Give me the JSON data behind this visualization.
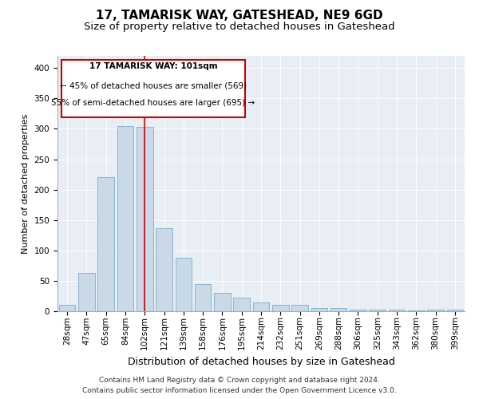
{
  "title": "17, TAMARISK WAY, GATESHEAD, NE9 6GD",
  "subtitle": "Size of property relative to detached houses in Gateshead",
  "xlabel": "Distribution of detached houses by size in Gateshead",
  "ylabel": "Number of detached properties",
  "categories": [
    "28sqm",
    "47sqm",
    "65sqm",
    "84sqm",
    "102sqm",
    "121sqm",
    "139sqm",
    "158sqm",
    "176sqm",
    "195sqm",
    "214sqm",
    "232sqm",
    "251sqm",
    "269sqm",
    "288sqm",
    "306sqm",
    "325sqm",
    "343sqm",
    "362sqm",
    "380sqm",
    "399sqm"
  ],
  "values": [
    10,
    63,
    220,
    305,
    303,
    137,
    88,
    45,
    30,
    22,
    14,
    11,
    10,
    5,
    5,
    3,
    2,
    2,
    1,
    3,
    3
  ],
  "bar_color": "#c9d9e8",
  "bar_edge_color": "#7aadcc",
  "vline_x_index": 4,
  "vline_color": "#cc0000",
  "ylim": [
    0,
    420
  ],
  "yticks": [
    0,
    50,
    100,
    150,
    200,
    250,
    300,
    350,
    400
  ],
  "annotation_title": "17 TAMARISK WAY: 101sqm",
  "annotation_line1": "← 45% of detached houses are smaller (569)",
  "annotation_line2": "55% of semi-detached houses are larger (695) →",
  "annotation_box_color": "#cc0000",
  "footer1": "Contains HM Land Registry data © Crown copyright and database right 2024.",
  "footer2": "Contains public sector information licensed under the Open Government Licence v3.0.",
  "title_fontsize": 11,
  "subtitle_fontsize": 9.5,
  "xlabel_fontsize": 9,
  "ylabel_fontsize": 8,
  "tick_fontsize": 7.5,
  "annotation_fontsize": 7.5,
  "footer_fontsize": 6.5,
  "background_color": "#e8eef4"
}
